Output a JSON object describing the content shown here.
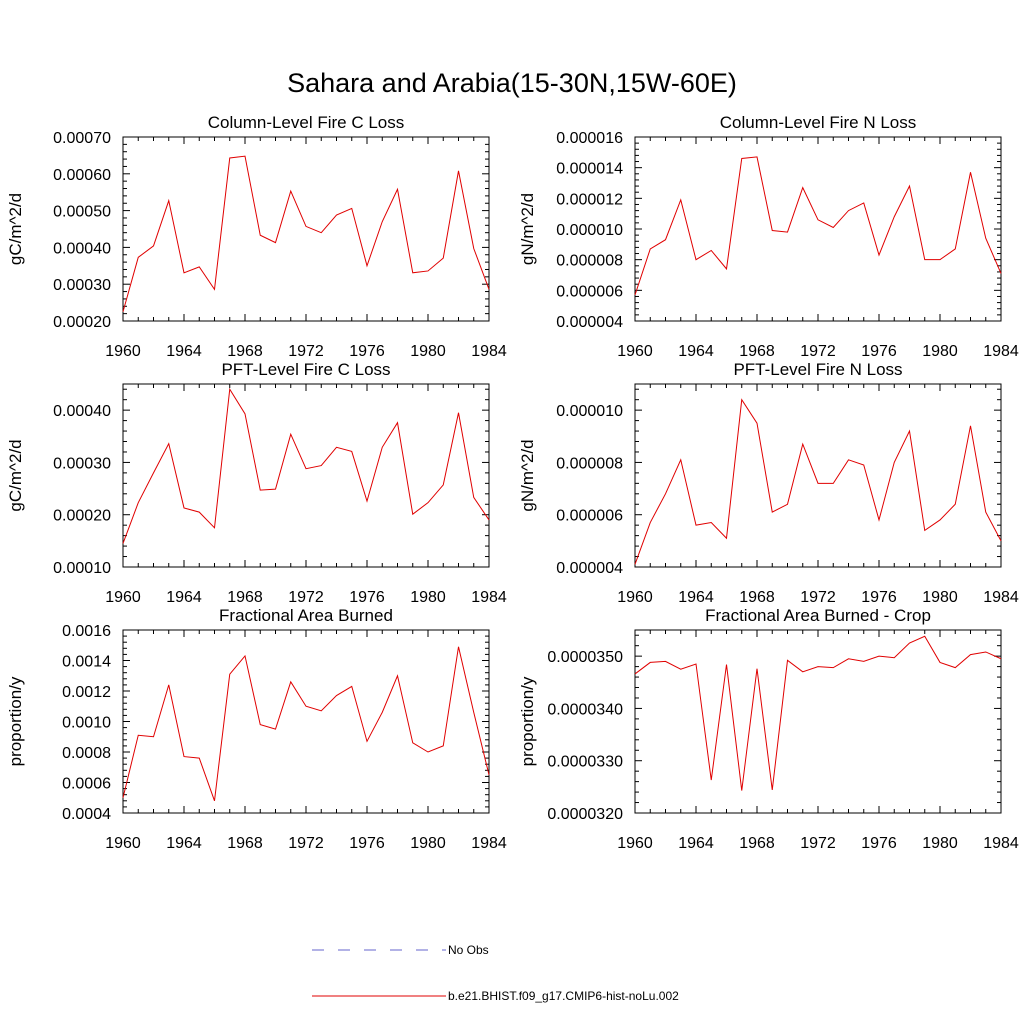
{
  "figure": {
    "title": "Sahara and Arabia(15-30N,15W-60E)"
  },
  "legend": {
    "items": [
      {
        "label": "No Obs",
        "color": "#6666cc",
        "dash": true
      },
      {
        "label": "b.e21.BHIST.f09_g17.CMIP6-hist-noLu.002",
        "color": "#e00000",
        "dash": false
      }
    ]
  },
  "chart_data": [
    {
      "type": "line",
      "title": "Column-Level Fire C Loss",
      "ylabel": "gC/m^2/d",
      "xlim": [
        1960,
        1984
      ],
      "xticks": [
        1960,
        1964,
        1968,
        1972,
        1976,
        1980,
        1984
      ],
      "ylim": [
        0.0002,
        0.0007
      ],
      "yticks": [
        "0.00020",
        "0.00030",
        "0.00040",
        "0.00050",
        "0.00060",
        "0.00070"
      ],
      "ytick_values": [
        0.0002,
        0.0003,
        0.0004,
        0.0005,
        0.0006,
        0.0007
      ],
      "series": [
        {
          "color": "#e00000",
          "x": [
            1960,
            1961,
            1962,
            1963,
            1964,
            1965,
            1966,
            1967,
            1968,
            1969,
            1970,
            1971,
            1972,
            1973,
            1974,
            1975,
            1976,
            1977,
            1978,
            1979,
            1980,
            1981,
            1982,
            1983,
            1984
          ],
          "values": [
            0.000225,
            0.000373,
            0.000404,
            0.000527,
            0.000331,
            0.000347,
            0.000286,
            0.000643,
            0.000648,
            0.000433,
            0.000413,
            0.000553,
            0.000457,
            0.00044,
            0.000488,
            0.000506,
            0.00035,
            0.00047,
            0.000558,
            0.000331,
            0.000336,
            0.000371,
            0.000608,
            0.000397,
            0.000286
          ]
        }
      ]
    },
    {
      "type": "line",
      "title": "Column-Level Fire N Loss",
      "ylabel": "gN/m^2/d",
      "xlim": [
        1960,
        1984
      ],
      "xticks": [
        1960,
        1964,
        1968,
        1972,
        1976,
        1980,
        1984
      ],
      "ylim": [
        4e-06,
        1.6e-05
      ],
      "yticks": [
        "0.000004",
        "0.000006",
        "0.000008",
        "0.000010",
        "0.000012",
        "0.000014",
        "0.000016"
      ],
      "ytick_values": [
        4e-06,
        6e-06,
        8e-06,
        1e-05,
        1.2e-05,
        1.4e-05,
        1.6e-05
      ],
      "series": [
        {
          "color": "#e00000",
          "x": [
            1960,
            1961,
            1962,
            1963,
            1964,
            1965,
            1966,
            1967,
            1968,
            1969,
            1970,
            1971,
            1972,
            1973,
            1974,
            1975,
            1976,
            1977,
            1978,
            1979,
            1980,
            1981,
            1982,
            1983,
            1984
          ],
          "values": [
            5.7e-06,
            8.7e-06,
            9.3e-06,
            1.19e-05,
            8e-06,
            8.6e-06,
            7.4e-06,
            1.46e-05,
            1.47e-05,
            9.9e-06,
            9.8e-06,
            1.27e-05,
            1.06e-05,
            1.01e-05,
            1.12e-05,
            1.17e-05,
            8.3e-06,
            1.08e-05,
            1.28e-05,
            8e-06,
            8e-06,
            8.7e-06,
            1.37e-05,
            9.4e-06,
            7.1e-06
          ]
        }
      ]
    },
    {
      "type": "line",
      "title": "PFT-Level Fire C Loss",
      "ylabel": "gC/m^2/d",
      "xlim": [
        1960,
        1984
      ],
      "xticks": [
        1960,
        1964,
        1968,
        1972,
        1976,
        1980,
        1984
      ],
      "ylim": [
        0.0001,
        0.00045
      ],
      "yticks": [
        "0.00010",
        "0.00020",
        "0.00030",
        "0.00040"
      ],
      "ytick_values": [
        0.0001,
        0.0002,
        0.0003,
        0.0004
      ],
      "series": [
        {
          "color": "#e00000",
          "x": [
            1960,
            1961,
            1962,
            1963,
            1964,
            1965,
            1966,
            1967,
            1968,
            1969,
            1970,
            1971,
            1972,
            1973,
            1974,
            1975,
            1976,
            1977,
            1978,
            1979,
            1980,
            1981,
            1982,
            1983,
            1984
          ],
          "values": [
            0.000145,
            0.000223,
            0.00028,
            0.000336,
            0.000213,
            0.000205,
            0.000175,
            0.00044,
            0.000393,
            0.000247,
            0.000249,
            0.000354,
            0.000288,
            0.000294,
            0.000329,
            0.000321,
            0.000226,
            0.000329,
            0.000376,
            0.000201,
            0.000223,
            0.000257,
            0.000395,
            0.000233,
            0.00019
          ]
        }
      ]
    },
    {
      "type": "line",
      "title": "PFT-Level Fire N Loss",
      "ylabel": "gN/m^2/d",
      "xlim": [
        1960,
        1984
      ],
      "xticks": [
        1960,
        1964,
        1968,
        1972,
        1976,
        1980,
        1984
      ],
      "ylim": [
        4e-06,
        1.1e-05
      ],
      "yticks": [
        "0.000004",
        "0.000006",
        "0.000008",
        "0.000010"
      ],
      "ytick_values": [
        4e-06,
        6e-06,
        8e-06,
        1e-05
      ],
      "series": [
        {
          "color": "#e00000",
          "x": [
            1960,
            1961,
            1962,
            1963,
            1964,
            1965,
            1966,
            1967,
            1968,
            1969,
            1970,
            1971,
            1972,
            1973,
            1974,
            1975,
            1976,
            1977,
            1978,
            1979,
            1980,
            1981,
            1982,
            1983,
            1984
          ],
          "values": [
            4.1e-06,
            5.7e-06,
            6.8e-06,
            8.1e-06,
            5.6e-06,
            5.7e-06,
            5.1e-06,
            1.04e-05,
            9.5e-06,
            6.1e-06,
            6.4e-06,
            8.7e-06,
            7.2e-06,
            7.2e-06,
            8.1e-06,
            7.9e-06,
            5.8e-06,
            8e-06,
            9.2e-06,
            5.4e-06,
            5.8e-06,
            6.4e-06,
            9.4e-06,
            6.1e-06,
            5e-06
          ]
        }
      ]
    },
    {
      "type": "line",
      "title": "Fractional Area Burned",
      "ylabel": "proportion/y",
      "xlim": [
        1960,
        1984
      ],
      "xticks": [
        1960,
        1964,
        1968,
        1972,
        1976,
        1980,
        1984
      ],
      "ylim": [
        0.0004,
        0.0016
      ],
      "yticks": [
        "0.0004",
        "0.0006",
        "0.0008",
        "0.0010",
        "0.0012",
        "0.0014",
        "0.0016"
      ],
      "ytick_values": [
        0.0004,
        0.0006,
        0.0008,
        0.001,
        0.0012,
        0.0014,
        0.0016
      ],
      "series": [
        {
          "color": "#e00000",
          "x": [
            1960,
            1961,
            1962,
            1963,
            1964,
            1965,
            1966,
            1967,
            1968,
            1969,
            1970,
            1971,
            1972,
            1973,
            1974,
            1975,
            1976,
            1977,
            1978,
            1979,
            1980,
            1981,
            1982,
            1983,
            1984
          ],
          "values": [
            0.0005,
            0.00091,
            0.0009,
            0.00124,
            0.00077,
            0.00076,
            0.00048,
            0.00131,
            0.00143,
            0.00098,
            0.00095,
            0.00126,
            0.0011,
            0.00107,
            0.00117,
            0.00123,
            0.00087,
            0.00106,
            0.0013,
            0.00086,
            0.0008,
            0.00084,
            0.00149,
            0.00106,
            0.00065
          ]
        }
      ]
    },
    {
      "type": "line",
      "title": "Fractional Area Burned - Crop",
      "ylabel": "proportion/y",
      "xlim": [
        1960,
        1984
      ],
      "xticks": [
        1960,
        1964,
        1968,
        1972,
        1976,
        1980,
        1984
      ],
      "ylim": [
        3.2e-05,
        3.55e-05
      ],
      "yticks": [
        "0.0000320",
        "0.0000330",
        "0.0000340",
        "0.0000350"
      ],
      "ytick_values": [
        3.2e-05,
        3.3e-05,
        3.4e-05,
        3.5e-05
      ],
      "series": [
        {
          "color": "#e00000",
          "x": [
            1960,
            1961,
            1962,
            1963,
            1964,
            1965,
            1966,
            1967,
            1968,
            1969,
            1970,
            1971,
            1972,
            1973,
            1974,
            1975,
            1976,
            1977,
            1978,
            1979,
            1980,
            1981,
            1982,
            1983,
            1984
          ],
          "values": [
            3.466e-05,
            3.488e-05,
            3.49e-05,
            3.475e-05,
            3.485e-05,
            3.263e-05,
            3.484e-05,
            3.243e-05,
            3.476e-05,
            3.244e-05,
            3.492e-05,
            3.47e-05,
            3.48e-05,
            3.478e-05,
            3.495e-05,
            3.49e-05,
            3.5e-05,
            3.497e-05,
            3.525e-05,
            3.538e-05,
            3.488e-05,
            3.478e-05,
            3.503e-05,
            3.508e-05,
            3.495e-05
          ]
        }
      ]
    }
  ]
}
